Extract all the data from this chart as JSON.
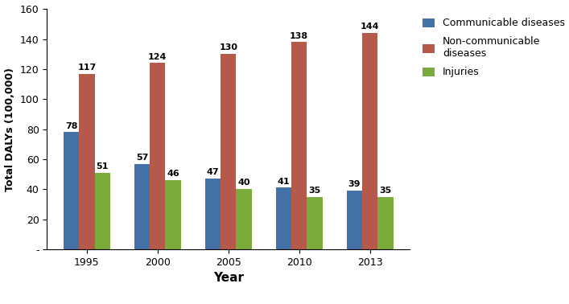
{
  "years": [
    "1995",
    "2000",
    "2005",
    "2010",
    "2013"
  ],
  "communicable": [
    78,
    57,
    47,
    41,
    39
  ],
  "non_communicable": [
    117,
    124,
    130,
    138,
    144
  ],
  "injuries": [
    51,
    46,
    40,
    35,
    35
  ],
  "bar_colors": {
    "communicable": "#4472a8",
    "non_communicable": "#b55a4a",
    "injuries": "#7aaa3a"
  },
  "ylabel": "Total DALYs (100,000)",
  "xlabel": "Year",
  "ylim_min": 0,
  "ylim_max": 160,
  "yticks": [
    0,
    20,
    40,
    60,
    80,
    100,
    120,
    140,
    160
  ],
  "ytick_labels": [
    "-",
    "20",
    "40",
    "60",
    "80",
    "100",
    "120",
    "140",
    "160"
  ],
  "legend_labels": [
    "Communicable diseases",
    "Non-communicable\ndiseases",
    "Injuries"
  ],
  "bar_width": 0.22
}
